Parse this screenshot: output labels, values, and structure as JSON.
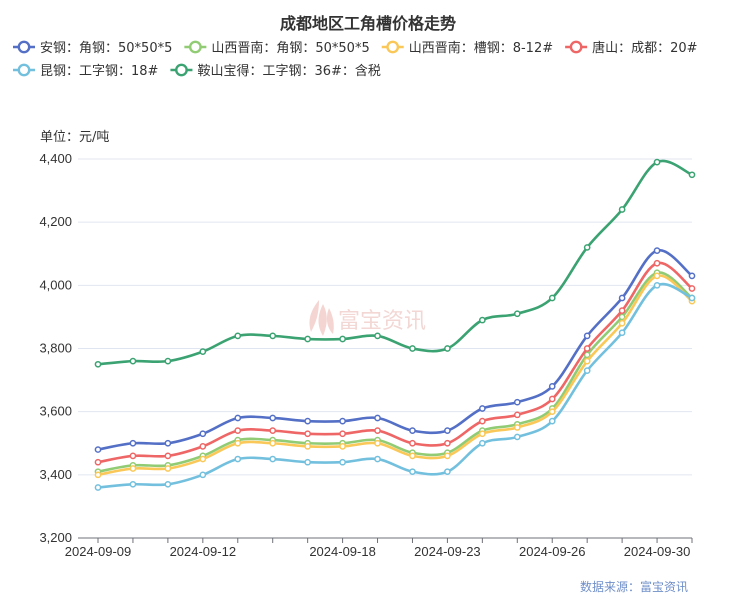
{
  "chart_data": {
    "type": "line",
    "title": "成都地区工角槽价格走势",
    "unit_label": "单位：元/吨",
    "source": "数据来源：富宝资讯",
    "watermark": "富宝资讯",
    "ylim": [
      3200,
      4400
    ],
    "y_ticks": [
      3200,
      3400,
      3600,
      3800,
      4000,
      4200,
      4400
    ],
    "y_tick_labels": [
      "3,200",
      "3,400",
      "3,600",
      "3,800",
      "4,000",
      "4,200",
      "4,400"
    ],
    "x": [
      "2024-09-09",
      "2024-09-10",
      "2024-09-11",
      "2024-09-12",
      "2024-09-13",
      "2024-09-14",
      "2024-09-16",
      "2024-09-18",
      "2024-09-19",
      "2024-09-20",
      "2024-09-23",
      "2024-09-24",
      "2024-09-25",
      "2024-09-26",
      "2024-09-27",
      "2024-09-29",
      "2024-09-30",
      "2024-10-02"
    ],
    "x_tick_labels": [
      "2024-09-09",
      "2024-09-12",
      "2024-09-18",
      "2024-09-23",
      "2024-09-26",
      "2024-09-30"
    ],
    "legend_position": "top",
    "grid": "horizontal",
    "series": [
      {
        "name": "安钢：角钢：50*50*5",
        "color": "#5470c6",
        "values": [
          3480,
          3500,
          3500,
          3530,
          3580,
          3580,
          3570,
          3570,
          3580,
          3540,
          3540,
          3610,
          3630,
          3680,
          3840,
          3960,
          4110,
          4030
        ]
      },
      {
        "name": "山西晋南：角钢：50*50*5",
        "color": "#91cc75",
        "values": [
          3410,
          3430,
          3430,
          3460,
          3510,
          3510,
          3500,
          3500,
          3510,
          3470,
          3470,
          3540,
          3560,
          3610,
          3780,
          3900,
          4040,
          3960
        ]
      },
      {
        "name": "山西晋南：槽钢：8-12#",
        "color": "#fac858",
        "values": [
          3400,
          3420,
          3420,
          3450,
          3500,
          3500,
          3490,
          3490,
          3500,
          3460,
          3460,
          3530,
          3550,
          3600,
          3760,
          3880,
          4030,
          3950
        ]
      },
      {
        "name": "唐山：成都：20#",
        "color": "#ee6666",
        "values": [
          3440,
          3460,
          3460,
          3490,
          3540,
          3540,
          3530,
          3530,
          3540,
          3500,
          3500,
          3570,
          3590,
          3640,
          3800,
          3920,
          4070,
          3990
        ]
      },
      {
        "name": "昆钢：工字钢：18#",
        "color": "#73c0de",
        "values": [
          3360,
          3370,
          3370,
          3400,
          3450,
          3450,
          3440,
          3440,
          3450,
          3410,
          3410,
          3500,
          3520,
          3570,
          3730,
          3850,
          4000,
          3960
        ]
      },
      {
        "name": "鞍山宝得：工字钢：36#：含税",
        "color": "#3ba272",
        "values": [
          3750,
          3760,
          3760,
          3790,
          3840,
          3840,
          3830,
          3830,
          3840,
          3800,
          3800,
          3890,
          3910,
          3960,
          4120,
          4240,
          4390,
          4350
        ]
      }
    ]
  }
}
